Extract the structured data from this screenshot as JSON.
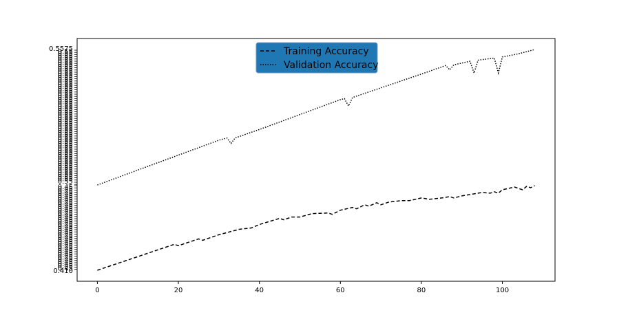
{
  "chart_data": {
    "type": "line",
    "title": "",
    "xlabel": "",
    "ylabel": "",
    "xlim": [
      -5,
      113
    ],
    "x_ticks": [
      0,
      20,
      40,
      60,
      80,
      100
    ],
    "grid": false,
    "legend": {
      "placement": "upper-center",
      "background": "#1f77b4"
    },
    "series": [
      {
        "name": "Training Accuracy",
        "linestyle": "dashed",
        "color": "#000000",
        "points": [
          [
            0,
            0.41
          ],
          [
            5,
            0.42
          ],
          [
            10,
            0.43
          ],
          [
            15,
            0.44
          ],
          [
            19,
            0.448
          ],
          [
            20,
            0.446
          ],
          [
            25,
            0.456
          ],
          [
            26,
            0.454
          ],
          [
            30,
            0.462
          ],
          [
            35,
            0.47
          ],
          [
            38,
            0.472
          ],
          [
            40,
            0.477
          ],
          [
            45,
            0.486
          ],
          [
            46,
            0.484
          ],
          [
            48,
            0.488
          ],
          [
            50,
            0.488
          ],
          [
            53,
            0.493
          ],
          [
            57,
            0.494
          ],
          [
            58,
            0.492
          ],
          [
            60,
            0.498
          ],
          [
            63,
            0.502
          ],
          [
            64,
            0.5
          ],
          [
            66,
            0.506
          ],
          [
            67,
            0.504
          ],
          [
            69,
            0.509
          ],
          [
            70,
            0.506
          ],
          [
            72,
            0.51
          ],
          [
            75,
            0.512
          ],
          [
            77,
            0.512
          ],
          [
            80,
            0.516
          ],
          [
            82,
            0.514
          ],
          [
            85,
            0.516
          ],
          [
            87,
            0.518
          ],
          [
            88,
            0.516
          ],
          [
            90,
            0.519
          ],
          [
            93,
            0.522
          ],
          [
            95,
            0.524
          ],
          [
            97,
            0.523
          ],
          [
            98,
            0.525
          ],
          [
            99,
            0.523
          ],
          [
            100,
            0.528
          ],
          [
            103,
            0.532
          ],
          [
            105,
            0.528
          ],
          [
            106,
            0.533
          ],
          [
            107,
            0.531
          ],
          [
            108,
            0.534
          ]
        ]
      },
      {
        "name": "Validation Accuracy",
        "linestyle": "dotted",
        "color": "#000000",
        "points": [
          [
            0,
            0.5005
          ],
          [
            10,
            0.5075
          ],
          [
            20,
            0.5145
          ],
          [
            30,
            0.5215
          ],
          [
            32,
            0.5225
          ],
          [
            33,
            0.52
          ],
          [
            34,
            0.5225
          ],
          [
            40,
            0.5265
          ],
          [
            50,
            0.5335
          ],
          [
            60,
            0.5405
          ],
          [
            61,
            0.541
          ],
          [
            62,
            0.5375
          ],
          [
            63,
            0.5415
          ],
          [
            70,
            0.546
          ],
          [
            80,
            0.5525
          ],
          [
            86,
            0.5565
          ],
          [
            87,
            0.5545
          ],
          [
            88,
            0.5568
          ],
          [
            92,
            0.5585
          ],
          [
            93,
            0.553
          ],
          [
            94,
            0.559
          ],
          [
            98,
            0.56
          ],
          [
            99,
            0.553
          ],
          [
            100,
            0.5605
          ],
          [
            104,
            0.562
          ],
          [
            108,
            0.564
          ]
        ]
      }
    ],
    "y_tick_labels_visible": [
      "0.410",
      "0.5575"
    ]
  }
}
